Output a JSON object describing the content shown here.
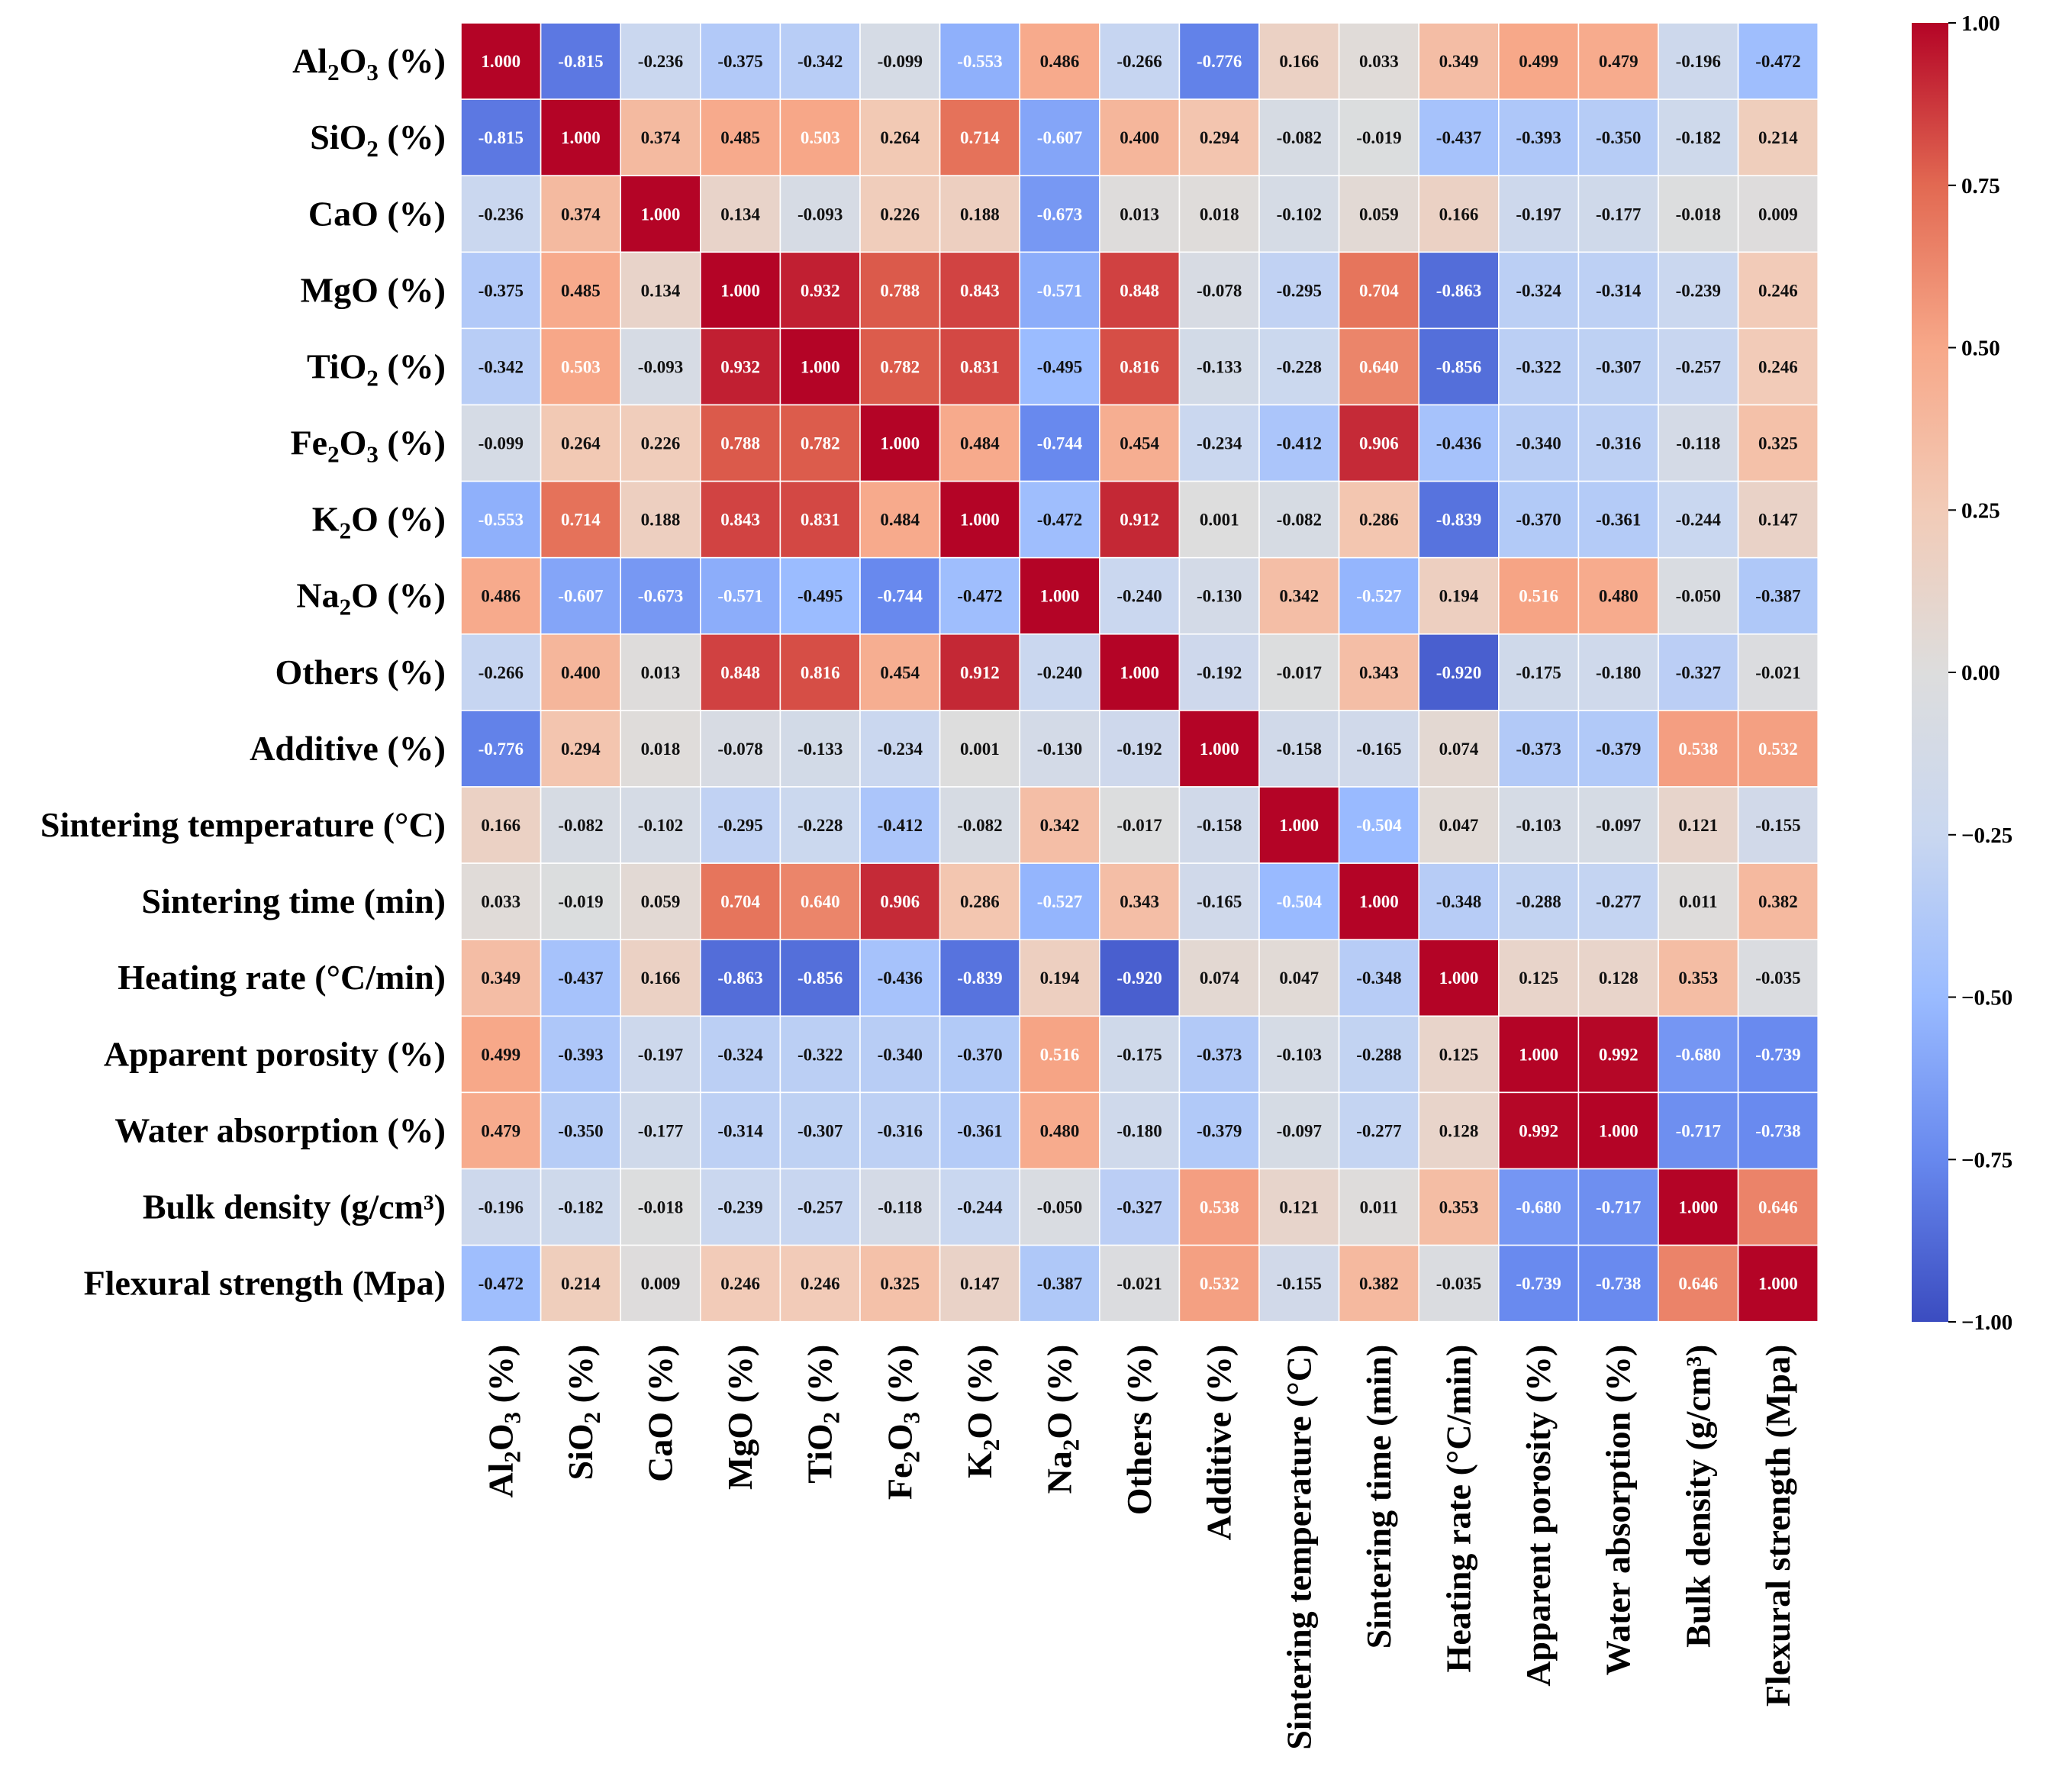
{
  "chart_data": {
    "type": "heatmap",
    "title": "",
    "xlabel": "",
    "ylabel": "",
    "labels": [
      {
        "main": "Al",
        "sub1": "2",
        "mid": "O",
        "sub2": "3",
        "tail": " (%)"
      },
      {
        "main": "SiO",
        "sub1": "2",
        "mid": "",
        "sub2": "",
        "tail": " (%)"
      },
      {
        "main": "CaO (%)",
        "sub1": "",
        "mid": "",
        "sub2": "",
        "tail": ""
      },
      {
        "main": "MgO (%)",
        "sub1": "",
        "mid": "",
        "sub2": "",
        "tail": ""
      },
      {
        "main": "TiO",
        "sub1": "2",
        "mid": "",
        "sub2": "",
        "tail": " (%)"
      },
      {
        "main": "Fe",
        "sub1": "2",
        "mid": "O",
        "sub2": "3",
        "tail": " (%)"
      },
      {
        "main": "K",
        "sub1": "2",
        "mid": "O (%)",
        "sub2": "",
        "tail": ""
      },
      {
        "main": "Na",
        "sub1": "2",
        "mid": "O (%)",
        "sub2": "",
        "tail": ""
      },
      {
        "main": "Others (%)",
        "sub1": "",
        "mid": "",
        "sub2": "",
        "tail": ""
      },
      {
        "main": "Additive (%)",
        "sub1": "",
        "mid": "",
        "sub2": "",
        "tail": ""
      },
      {
        "main": "Sintering temperature (°C)",
        "sub1": "",
        "mid": "",
        "sub2": "",
        "tail": ""
      },
      {
        "main": "Sintering time (min)",
        "sub1": "",
        "mid": "",
        "sub2": "",
        "tail": ""
      },
      {
        "main": "Heating rate (°C/min)",
        "sub1": "",
        "mid": "",
        "sub2": "",
        "tail": ""
      },
      {
        "main": "Apparent porosity (%)",
        "sub1": "",
        "mid": "",
        "sub2": "",
        "tail": ""
      },
      {
        "main": "Water absorption (%)",
        "sub1": "",
        "mid": "",
        "sub2": "",
        "tail": ""
      },
      {
        "main": "Bulk density (g/cm³)",
        "sub1": "",
        "mid": "",
        "sub2": "",
        "tail": ""
      },
      {
        "main": "Flexural strength (Mpa)",
        "sub1": "",
        "mid": "",
        "sub2": "",
        "tail": ""
      }
    ],
    "matrix": [
      [
        1.0,
        -0.815,
        -0.236,
        -0.375,
        -0.342,
        -0.099,
        -0.553,
        0.486,
        -0.266,
        -0.776,
        0.166,
        0.033,
        0.349,
        0.499,
        0.479,
        -0.196,
        -0.472
      ],
      [
        -0.815,
        1.0,
        0.374,
        0.485,
        0.503,
        0.264,
        0.714,
        -0.607,
        0.4,
        0.294,
        -0.082,
        -0.019,
        -0.437,
        -0.393,
        -0.35,
        -0.182,
        0.214
      ],
      [
        -0.236,
        0.374,
        1.0,
        0.134,
        -0.093,
        0.226,
        0.188,
        -0.673,
        0.013,
        0.018,
        -0.102,
        0.059,
        0.166,
        -0.197,
        -0.177,
        -0.018,
        0.009
      ],
      [
        -0.375,
        0.485,
        0.134,
        1.0,
        0.932,
        0.788,
        0.843,
        -0.571,
        0.848,
        -0.078,
        -0.295,
        0.704,
        -0.863,
        -0.324,
        -0.314,
        -0.239,
        0.246
      ],
      [
        -0.342,
        0.503,
        -0.093,
        0.932,
        1.0,
        0.782,
        0.831,
        -0.495,
        0.816,
        -0.133,
        -0.228,
        0.64,
        -0.856,
        -0.322,
        -0.307,
        -0.257,
        0.246
      ],
      [
        -0.099,
        0.264,
        0.226,
        0.788,
        0.782,
        1.0,
        0.484,
        -0.744,
        0.454,
        -0.234,
        -0.412,
        0.906,
        -0.436,
        -0.34,
        -0.316,
        -0.118,
        0.325
      ],
      [
        -0.553,
        0.714,
        0.188,
        0.843,
        0.831,
        0.484,
        1.0,
        -0.472,
        0.912,
        0.001,
        -0.082,
        0.286,
        -0.839,
        -0.37,
        -0.361,
        -0.244,
        0.147
      ],
      [
        0.486,
        -0.607,
        -0.673,
        -0.571,
        -0.495,
        -0.744,
        -0.472,
        1.0,
        -0.24,
        -0.13,
        0.342,
        -0.527,
        0.194,
        0.516,
        0.48,
        -0.05,
        -0.387
      ],
      [
        -0.266,
        0.4,
        0.013,
        0.848,
        0.816,
        0.454,
        0.912,
        -0.24,
        1.0,
        -0.192,
        -0.017,
        0.343,
        -0.92,
        -0.175,
        -0.18,
        -0.327,
        -0.021
      ],
      [
        -0.776,
        0.294,
        0.018,
        -0.078,
        -0.133,
        -0.234,
        0.001,
        -0.13,
        -0.192,
        1.0,
        -0.158,
        -0.165,
        0.074,
        -0.373,
        -0.379,
        0.538,
        0.532
      ],
      [
        0.166,
        -0.082,
        -0.102,
        -0.295,
        -0.228,
        -0.412,
        -0.082,
        0.342,
        -0.017,
        -0.158,
        1.0,
        -0.504,
        0.047,
        -0.103,
        -0.097,
        0.121,
        -0.155
      ],
      [
        0.033,
        -0.019,
        0.059,
        0.704,
        0.64,
        0.906,
        0.286,
        -0.527,
        0.343,
        -0.165,
        -0.504,
        1.0,
        -0.348,
        -0.288,
        -0.277,
        0.011,
        0.382
      ],
      [
        0.349,
        -0.437,
        0.166,
        -0.863,
        -0.856,
        -0.436,
        -0.839,
        0.194,
        -0.92,
        0.074,
        0.047,
        -0.348,
        1.0,
        0.125,
        0.128,
        0.353,
        -0.035
      ],
      [
        0.499,
        -0.393,
        -0.197,
        -0.324,
        -0.322,
        -0.34,
        -0.37,
        0.516,
        -0.175,
        -0.373,
        -0.103,
        -0.288,
        0.125,
        1.0,
        0.992,
        -0.68,
        -0.739
      ],
      [
        0.479,
        -0.35,
        -0.177,
        -0.314,
        -0.307,
        -0.316,
        -0.361,
        0.48,
        -0.18,
        -0.379,
        -0.097,
        -0.277,
        0.128,
        0.992,
        1.0,
        -0.717,
        -0.738
      ],
      [
        -0.196,
        -0.182,
        -0.018,
        -0.239,
        -0.257,
        -0.118,
        -0.244,
        -0.05,
        -0.327,
        0.538,
        0.121,
        0.011,
        0.353,
        -0.68,
        -0.717,
        1.0,
        0.646
      ],
      [
        -0.472,
        0.214,
        0.009,
        0.246,
        0.246,
        0.325,
        0.147,
        -0.387,
        -0.021,
        0.532,
        -0.155,
        0.382,
        -0.035,
        -0.739,
        -0.738,
        0.646,
        1.0
      ]
    ],
    "value_range": [
      -1.0,
      1.0
    ],
    "colorbar": {
      "ticks": [
        1.0,
        0.75,
        0.5,
        0.25,
        0.0,
        -0.25,
        -0.5,
        -0.75,
        -1.0
      ],
      "tick_labels": [
        "1.00",
        "0.75",
        "0.50",
        "0.25",
        "0.00",
        "−0.25",
        "−0.50",
        "−0.75",
        "−1.00"
      ]
    },
    "colormap": "coolwarm",
    "colormap_stops": [
      "#3b4cc0",
      "#6788ee",
      "#9abbff",
      "#c9d7f0",
      "#dddddd",
      "#f2cbb7",
      "#f7a889",
      "#e26952",
      "#b40426"
    ]
  }
}
